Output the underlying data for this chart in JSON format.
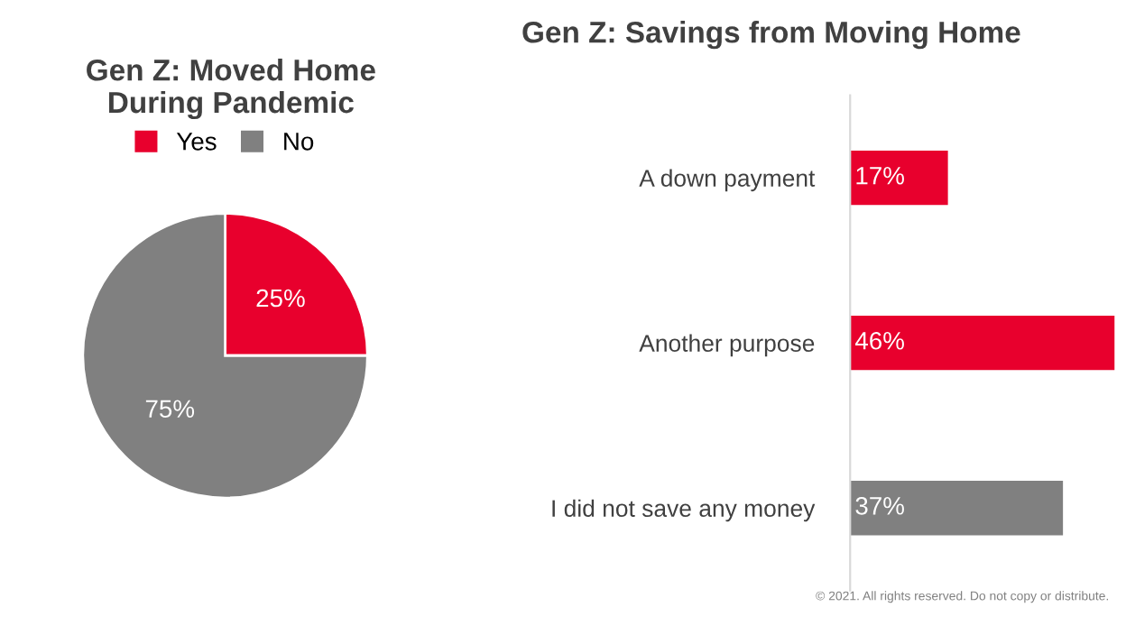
{
  "chart_data": [
    {
      "type": "pie",
      "title": "Gen Z: Moved Home\nDuring Pandemic",
      "categories": [
        "Yes",
        "No"
      ],
      "values": [
        25,
        75
      ],
      "colors": [
        "#e8002d",
        "#808080"
      ],
      "value_labels": [
        "25%",
        "75%"
      ],
      "legend": "top"
    },
    {
      "type": "bar",
      "orientation": "horizontal",
      "title": "Gen Z: Savings from Moving Home",
      "categories": [
        "A down payment",
        "Another purpose",
        "I did not save any money"
      ],
      "values": [
        17,
        46,
        37
      ],
      "colors": [
        "#e8002d",
        "#e8002d",
        "#808080"
      ],
      "value_labels": [
        "17%",
        "46%",
        "37%"
      ],
      "annotations": [
        "© 2021. All rights reserved. Do not copy or distribute."
      ]
    }
  ]
}
